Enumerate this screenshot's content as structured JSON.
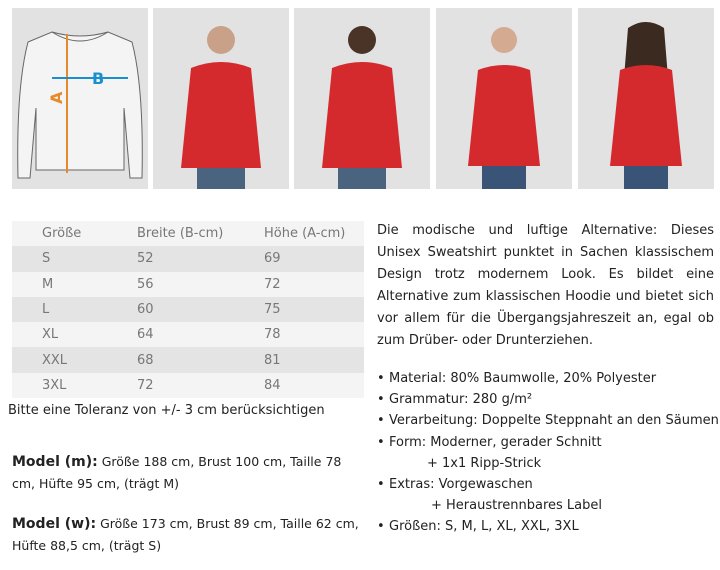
{
  "images": {
    "diagram_labels": {
      "width": "B",
      "height": "A"
    },
    "colors": {
      "garment": "#d42a2e",
      "width_arrow": "#1a8fcf",
      "height_arrow": "#e8892a"
    }
  },
  "size_table": {
    "headers": [
      "Größe",
      "Breite (B-cm)",
      "Höhe (A-cm)"
    ],
    "rows": [
      [
        "S",
        "52",
        "69"
      ],
      [
        "M",
        "56",
        "72"
      ],
      [
        "L",
        "60",
        "75"
      ],
      [
        "XL",
        "64",
        "78"
      ],
      [
        "XXL",
        "68",
        "81"
      ],
      [
        "3XL",
        "72",
        "84"
      ]
    ]
  },
  "tolerance": "Bitte eine Toleranz von +/- 3 cm berücksichtigen",
  "model_m": {
    "label": "Model (m):",
    "text": "Größe 188 cm, Brust 100 cm, Taille 78 cm, Hüfte 95 cm, (trägt M)"
  },
  "model_w": {
    "label": "Model (w):",
    "text": "Größe 173 cm, Brust 89 cm, Taille 62 cm, Hüfte 88,5 cm, (trägt S)"
  },
  "description": "Die modische und luftige Alternative: Dieses Unisex Sweatshirt punktet in Sachen klassischem Design trotz modernem Look. Es bildet eine Alternative zum klassischen Hoodie und bietet sich vor allem für die Übergangsjahreszeit an, egal ob zum Drüber- oder Drunterziehen.",
  "features": [
    "Material: 80% Baumwolle, 20% Polyester",
    "Grammatur: 280 g/m²",
    "Verarbeitung: Doppelte Steppnaht an den Säumen",
    "Form: Moderner, gerader Schnitt",
    "+ 1x1 Ripp-Strick",
    "Extras: Vorgewaschen",
    "+ Heraustrennbares Label",
    "Größen:  S, M, L, XL, XXL, 3XL"
  ]
}
